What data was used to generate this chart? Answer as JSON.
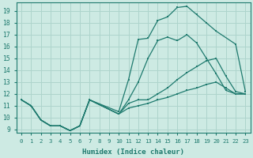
{
  "xlabel": "Humidex (Indice chaleur)",
  "xlim": [
    -0.5,
    23.5
  ],
  "ylim": [
    8.7,
    19.7
  ],
  "yticks": [
    9,
    10,
    11,
    12,
    13,
    14,
    15,
    16,
    17,
    18,
    19
  ],
  "xticks": [
    0,
    1,
    2,
    3,
    4,
    5,
    6,
    7,
    8,
    9,
    10,
    11,
    12,
    13,
    14,
    15,
    16,
    17,
    18,
    19,
    20,
    21,
    22,
    23
  ],
  "bg_color": "#cdeae3",
  "grid_color": "#aed4cc",
  "line_color": "#1e7a6e",
  "lines": [
    {
      "x": [
        0,
        1,
        2,
        3,
        4,
        5,
        6,
        7,
        10,
        11,
        12,
        13,
        14,
        15,
        16,
        17,
        18,
        19,
        20,
        22,
        23
      ],
      "y": [
        11.5,
        11.0,
        9.8,
        9.3,
        9.3,
        8.9,
        9.3,
        11.5,
        10.5,
        13.2,
        16.6,
        16.7,
        18.2,
        18.5,
        19.3,
        19.4,
        18.7,
        18.0,
        17.3,
        16.2,
        12.2
      ]
    },
    {
      "x": [
        0,
        1,
        2,
        3,
        4,
        5,
        6,
        7,
        10,
        11,
        12,
        13,
        14,
        15,
        16,
        17,
        18,
        19,
        20,
        21,
        22,
        23
      ],
      "y": [
        11.5,
        11.0,
        9.8,
        9.3,
        9.3,
        8.9,
        9.3,
        11.5,
        10.3,
        11.5,
        13.0,
        15.0,
        16.5,
        16.8,
        16.5,
        17.0,
        16.3,
        15.0,
        13.7,
        12.3,
        12.0,
        12.0
      ]
    },
    {
      "x": [
        0,
        1,
        2,
        3,
        4,
        5,
        6,
        7,
        10,
        11,
        12,
        13,
        14,
        15,
        16,
        17,
        18,
        19,
        20,
        21,
        22,
        23
      ],
      "y": [
        11.5,
        11.0,
        9.8,
        9.3,
        9.3,
        8.9,
        9.3,
        11.5,
        10.3,
        11.2,
        11.5,
        11.5,
        12.0,
        12.5,
        13.2,
        13.8,
        14.3,
        14.8,
        15.0,
        13.5,
        12.2,
        12.0
      ]
    },
    {
      "x": [
        0,
        1,
        2,
        3,
        4,
        5,
        6,
        7,
        10,
        11,
        12,
        13,
        14,
        15,
        16,
        17,
        18,
        19,
        20,
        21,
        22,
        23
      ],
      "y": [
        11.5,
        11.0,
        9.8,
        9.3,
        9.3,
        8.9,
        9.3,
        11.5,
        10.3,
        10.8,
        11.0,
        11.2,
        11.5,
        11.7,
        12.0,
        12.3,
        12.5,
        12.8,
        13.0,
        12.5,
        12.0,
        12.0
      ]
    }
  ]
}
